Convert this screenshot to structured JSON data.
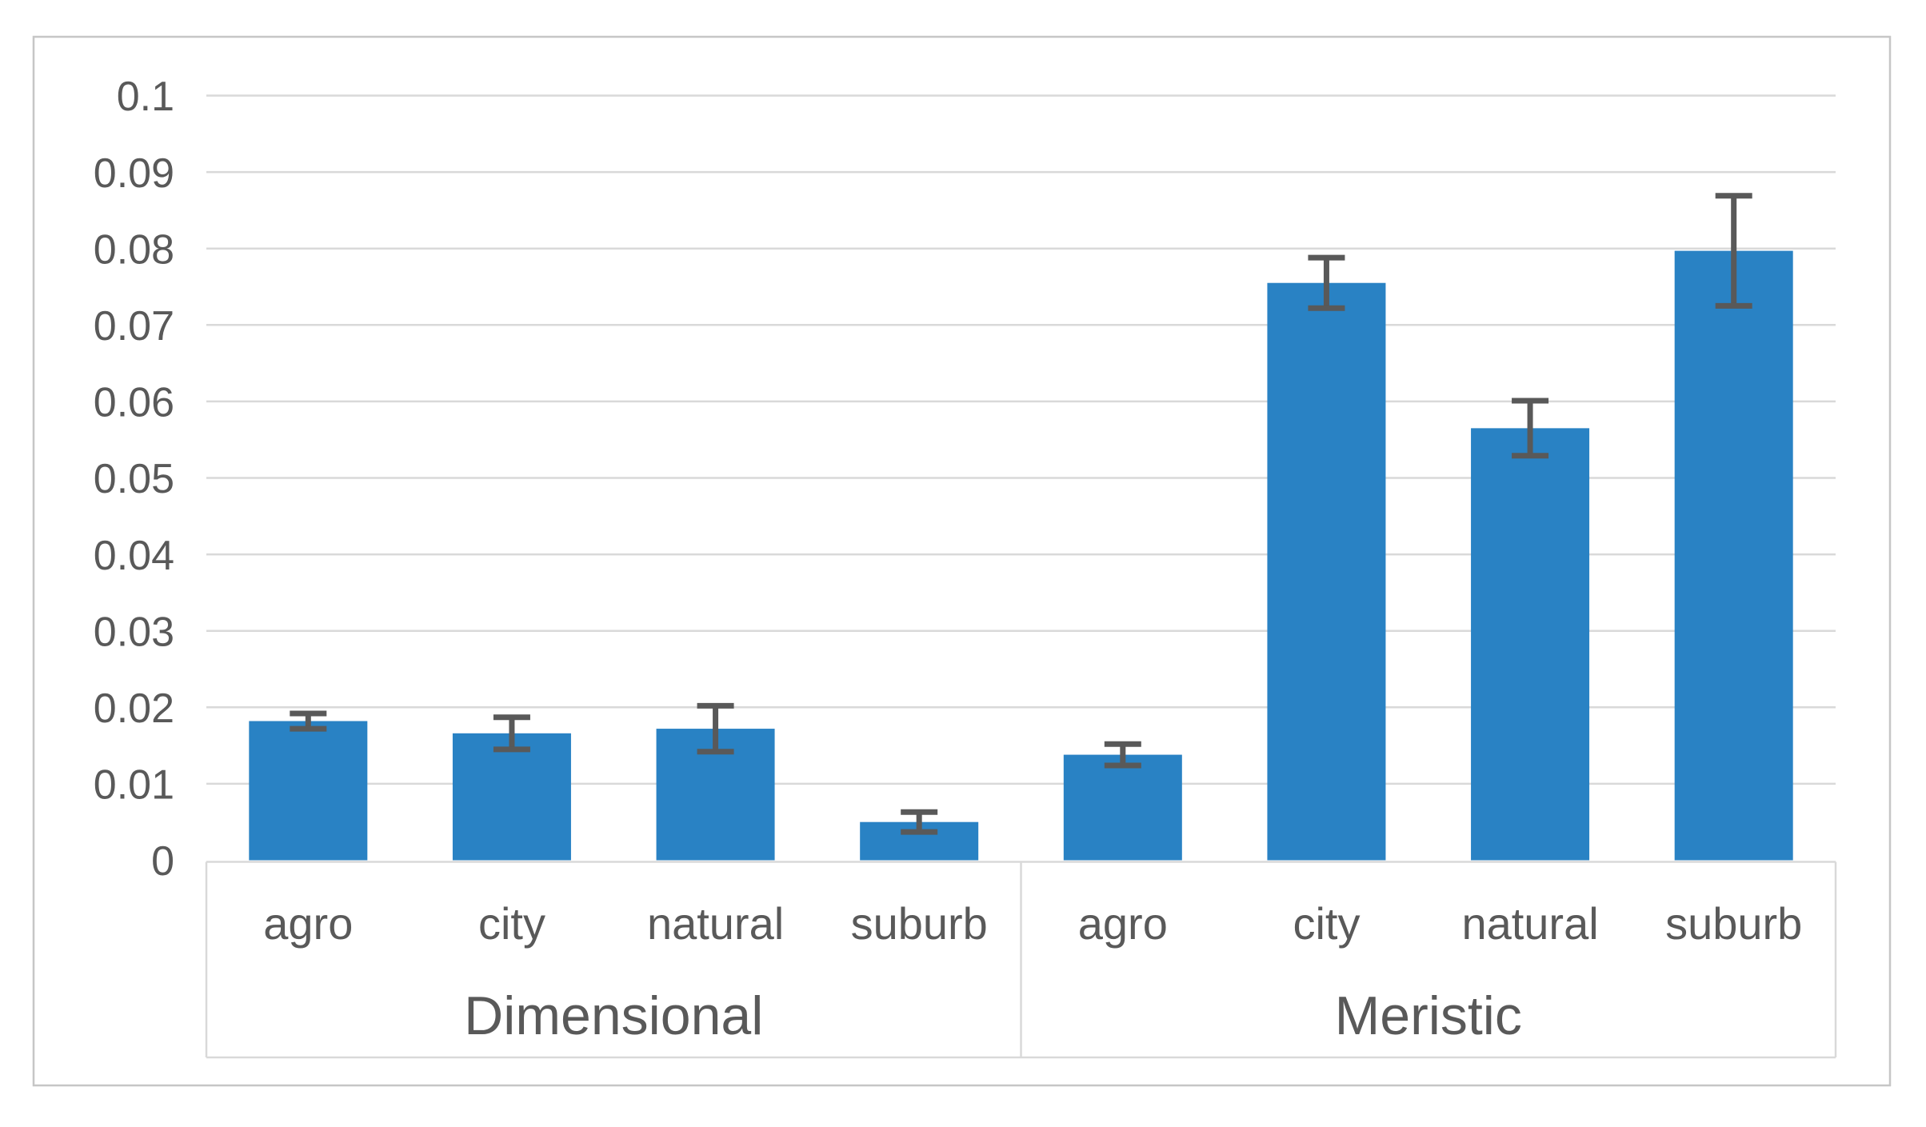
{
  "figure": {
    "kind": "grouped bar chart with error bars",
    "title": "",
    "background_color": "#FFFFFF",
    "outer_border_color": "#C6C6C6"
  },
  "chart_data": {
    "type": "bar",
    "title": "",
    "xlabel": "",
    "ylabel": "",
    "ylim": [
      0,
      0.1
    ],
    "grid": true,
    "legend": false,
    "groups": [
      {
        "label": "Dimensional",
        "categories": [
          "agro",
          "city",
          "natural",
          "suburb"
        ],
        "values": [
          0.0182,
          0.0166,
          0.0172,
          0.005
        ],
        "errors": [
          0.001,
          0.0021,
          0.003,
          0.0013
        ]
      },
      {
        "label": "Meristic",
        "categories": [
          "agro",
          "city",
          "natural",
          "suburb"
        ],
        "values": [
          0.0138,
          0.0755,
          0.0565,
          0.0797
        ],
        "errors": [
          0.0014,
          0.0033,
          0.0036,
          0.0072
        ]
      }
    ],
    "y_ticks": [
      {
        "value": 0,
        "label": "0"
      },
      {
        "value": 0.01,
        "label": "0.01"
      },
      {
        "value": 0.02,
        "label": "0.02"
      },
      {
        "value": 0.03,
        "label": "0.03"
      },
      {
        "value": 0.04,
        "label": "0.04"
      },
      {
        "value": 0.05,
        "label": "0.05"
      },
      {
        "value": 0.06,
        "label": "0.06"
      },
      {
        "value": 0.07,
        "label": "0.07"
      },
      {
        "value": 0.08,
        "label": "0.08"
      },
      {
        "value": 0.09,
        "label": "0.09"
      },
      {
        "value": 0.1,
        "label": "0.1"
      }
    ],
    "colors": {
      "bar": "#2982C4",
      "error_bar": "#595959",
      "gridline": "#D9D9D9",
      "axis_table_border": "#D9D9D9",
      "tick_text": "#595959",
      "category_text": "#595959",
      "group_text": "#595959"
    }
  }
}
